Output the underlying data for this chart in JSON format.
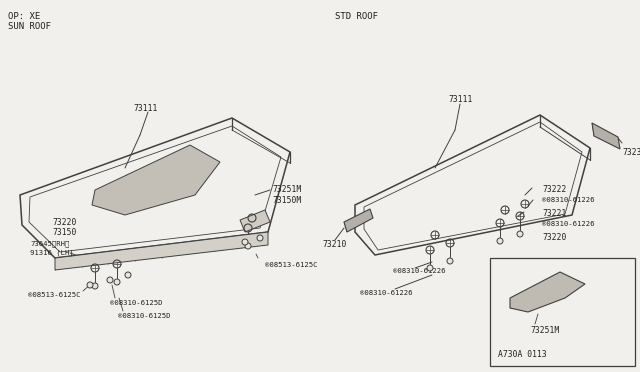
{
  "bg_color": "#f2f0ec",
  "line_color": "#404040",
  "text_color": "#202020",
  "title_left_line1": "OP: XE",
  "title_left_line2": "SUN ROOF",
  "title_right": "STD ROOF",
  "diagram_number": "A730A 0113",
  "font_size_label": 5.8,
  "font_size_small": 5.2
}
